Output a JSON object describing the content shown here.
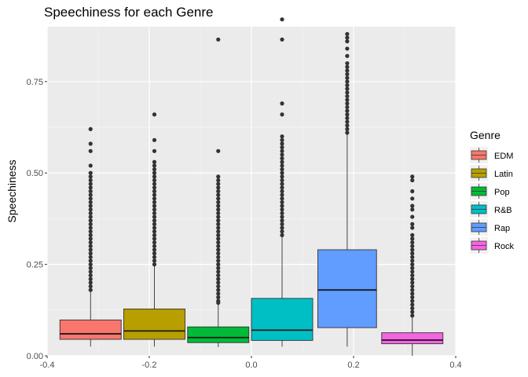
{
  "chart_data": {
    "type": "boxplot",
    "title": "Speechiness for each Genre",
    "xlabel": "",
    "ylabel": "Speechiness",
    "xlim": [
      -0.4,
      0.4
    ],
    "ylim": [
      0.0,
      0.9
    ],
    "xticks": [
      "-0.4",
      "-0.2",
      "0.0",
      "0.2",
      "0.4"
    ],
    "xtick_values": [
      -0.4,
      -0.2,
      0.0,
      0.2,
      0.4
    ],
    "yticks": [
      "0.00",
      "0.25",
      "0.50",
      "0.75"
    ],
    "ytick_values": [
      0.0,
      0.25,
      0.5,
      0.75
    ],
    "grid": true,
    "legend": {
      "title": "Genre",
      "position": "right"
    },
    "series": [
      {
        "name": "EDM",
        "color": "#F8766D",
        "x_min": -0.375,
        "x_max": -0.255,
        "q1": 0.045,
        "median": 0.06,
        "q3": 0.098,
        "whisker_low": 0.025,
        "whisker_high": 0.175,
        "outliers": [
          0.18,
          0.19,
          0.2,
          0.21,
          0.22,
          0.23,
          0.24,
          0.25,
          0.26,
          0.27,
          0.28,
          0.29,
          0.3,
          0.31,
          0.32,
          0.33,
          0.34,
          0.35,
          0.36,
          0.37,
          0.38,
          0.39,
          0.4,
          0.41,
          0.42,
          0.43,
          0.44,
          0.45,
          0.46,
          0.47,
          0.48,
          0.49,
          0.5,
          0.52,
          0.56,
          0.58,
          0.62
        ]
      },
      {
        "name": "Latin",
        "color": "#B79F00",
        "x_min": -0.25,
        "x_max": -0.13,
        "q1": 0.045,
        "median": 0.068,
        "q3": 0.128,
        "whisker_low": 0.025,
        "whisker_high": 0.25,
        "outliers": [
          0.25,
          0.26,
          0.27,
          0.28,
          0.29,
          0.3,
          0.31,
          0.32,
          0.33,
          0.34,
          0.35,
          0.36,
          0.37,
          0.38,
          0.39,
          0.4,
          0.41,
          0.42,
          0.43,
          0.44,
          0.45,
          0.46,
          0.47,
          0.48,
          0.49,
          0.5,
          0.51,
          0.52,
          0.53,
          0.56,
          0.59,
          0.66
        ]
      },
      {
        "name": "Pop",
        "color": "#00BA38",
        "x_min": -0.125,
        "x_max": -0.005,
        "q1": 0.036,
        "median": 0.05,
        "q3": 0.079,
        "whisker_low": 0.024,
        "whisker_high": 0.142,
        "outliers": [
          0.145,
          0.15,
          0.16,
          0.17,
          0.18,
          0.19,
          0.2,
          0.21,
          0.22,
          0.23,
          0.24,
          0.25,
          0.26,
          0.27,
          0.28,
          0.29,
          0.3,
          0.31,
          0.32,
          0.33,
          0.34,
          0.35,
          0.36,
          0.37,
          0.38,
          0.39,
          0.4,
          0.41,
          0.42,
          0.43,
          0.44,
          0.45,
          0.46,
          0.47,
          0.48,
          0.49,
          0.56,
          0.865
        ]
      },
      {
        "name": "R&B",
        "color": "#00BFC4",
        "x_min": 0.0,
        "x_max": 0.12,
        "q1": 0.042,
        "median": 0.07,
        "q3": 0.157,
        "whisker_low": 0.025,
        "whisker_high": 0.33,
        "outliers": [
          0.33,
          0.34,
          0.35,
          0.36,
          0.37,
          0.38,
          0.39,
          0.4,
          0.41,
          0.42,
          0.43,
          0.44,
          0.45,
          0.46,
          0.47,
          0.48,
          0.49,
          0.5,
          0.51,
          0.52,
          0.53,
          0.54,
          0.55,
          0.56,
          0.57,
          0.58,
          0.59,
          0.6,
          0.66,
          0.69,
          0.865,
          0.92
        ]
      },
      {
        "name": "Rap",
        "color": "#619CFF",
        "x_min": 0.13,
        "x_max": 0.245,
        "q1": 0.077,
        "median": 0.18,
        "q3": 0.29,
        "whisker_low": 0.025,
        "whisker_high": 0.605,
        "outliers": [
          0.61,
          0.62,
          0.63,
          0.64,
          0.65,
          0.66,
          0.67,
          0.68,
          0.69,
          0.7,
          0.71,
          0.72,
          0.73,
          0.74,
          0.75,
          0.76,
          0.77,
          0.78,
          0.79,
          0.8,
          0.82,
          0.84,
          0.86,
          0.87,
          0.88
        ]
      },
      {
        "name": "Rock",
        "color": "#F564E3",
        "x_min": 0.255,
        "x_max": 0.375,
        "q1": 0.033,
        "median": 0.043,
        "q3": 0.063,
        "whisker_low": 0.0,
        "whisker_high": 0.105,
        "outliers": [
          0.11,
          0.12,
          0.13,
          0.14,
          0.15,
          0.16,
          0.17,
          0.18,
          0.19,
          0.2,
          0.21,
          0.22,
          0.23,
          0.24,
          0.25,
          0.26,
          0.27,
          0.28,
          0.29,
          0.3,
          0.31,
          0.32,
          0.33,
          0.35,
          0.36,
          0.38,
          0.4,
          0.41,
          0.43,
          0.45,
          0.48,
          0.49
        ]
      }
    ]
  }
}
